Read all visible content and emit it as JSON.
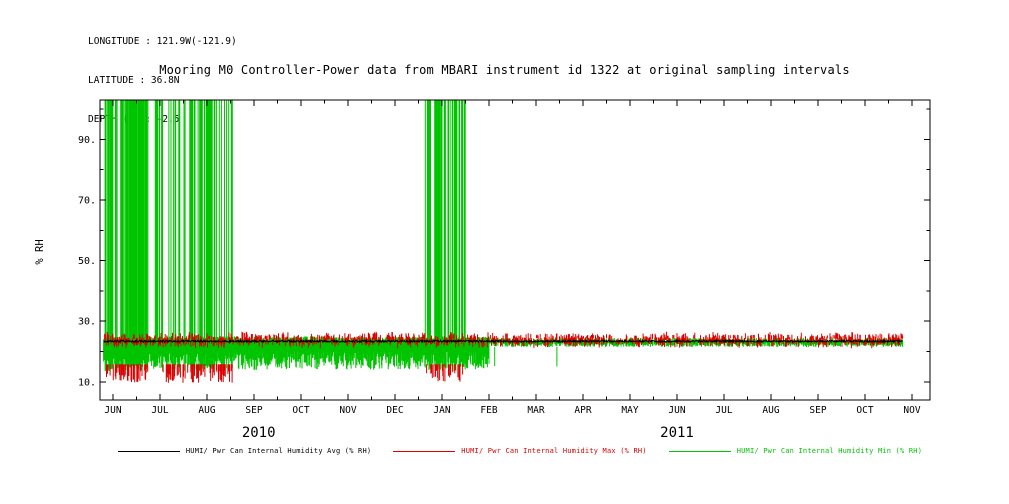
{
  "header": {
    "longitude": "LONGITUDE : 121.9W(-121.9)",
    "latitude": "LATITUDE : 36.8N",
    "depth": "DEPTH (m) : -2.5"
  },
  "chart_data": {
    "type": "line",
    "title": "Mooring M0 Controller-Power data from MBARI instrument id 1322 at original sampling intervals",
    "xlabel": "",
    "ylabel": "% RH",
    "ylim": [
      4,
      103
    ],
    "yticks": [
      10,
      30,
      50,
      70,
      90
    ],
    "ytick_labels": [
      "10.",
      "30.",
      "50.",
      "70.",
      "90."
    ],
    "x_months": [
      "JUN",
      "JUL",
      "AUG",
      "SEP",
      "OCT",
      "NOV",
      "DEC",
      "JAN",
      "FEB",
      "MAR",
      "APR",
      "MAY",
      "JUN",
      "JUL",
      "AUG",
      "SEP",
      "OCT",
      "NOV"
    ],
    "year_labels": [
      {
        "label": "2010",
        "month_index": 3.1
      },
      {
        "label": "2011",
        "month_index": 12.0
      }
    ],
    "grid": false,
    "legend_position": "bottom",
    "samples_per_month": 90,
    "seed": 42,
    "series": [
      {
        "id": "avg",
        "name": "HUMI/ Pwr Can Internal Humidity Avg (% RH)",
        "color": "#000000",
        "style": "line",
        "x_start": -0.2,
        "x_end": 16.8,
        "baseline": 23.4,
        "jitter": 0.6
      },
      {
        "id": "max",
        "name": "HUMI/ Pwr Can Internal Humidity Max (% RH)",
        "color": "#dd0000",
        "style": "ticks",
        "x_start": -0.2,
        "x_end": 16.8,
        "baseline": 23.8,
        "tick_density": 0.55,
        "spread": 2.6,
        "down_spike_windows": [
          {
            "from": -0.15,
            "to": 0.75,
            "low": 9.6,
            "high": 15.8,
            "density": 0.5
          },
          {
            "from": 1.0,
            "to": 2.55,
            "low": 9.6,
            "high": 15.8,
            "density": 0.45
          },
          {
            "from": 6.65,
            "to": 7.5,
            "low": 10.0,
            "high": 15.8,
            "density": 0.4
          }
        ]
      },
      {
        "id": "min",
        "name": "HUMI/ Pwr Can Internal Humidity Min (% RH)",
        "color": "#00c400",
        "style": "band",
        "x_start": -0.2,
        "x_end": 16.8,
        "spike_top": 103,
        "band_segments": [
          {
            "from": -0.2,
            "to": 8.0,
            "low": 14,
            "high": 25
          },
          {
            "from": 8.0,
            "to": 16.8,
            "low": 21.5,
            "high": 24.5
          }
        ],
        "up_spike_windows": [
          {
            "from": -0.18,
            "to": 0.75,
            "density": 0.65
          },
          {
            "from": 0.9,
            "to": 1.45,
            "density": 0.3
          },
          {
            "from": 1.5,
            "to": 2.2,
            "density": 0.5
          },
          {
            "from": 2.25,
            "to": 2.6,
            "density": 0.3
          },
          {
            "from": 6.6,
            "to": 7.0,
            "density": 0.45
          },
          {
            "from": 7.05,
            "to": 7.5,
            "density": 0.55
          }
        ],
        "dip_windows": [
          {
            "from": 8.0,
            "to": 9.6,
            "low": 12.5,
            "density": 0.06
          }
        ]
      }
    ]
  }
}
